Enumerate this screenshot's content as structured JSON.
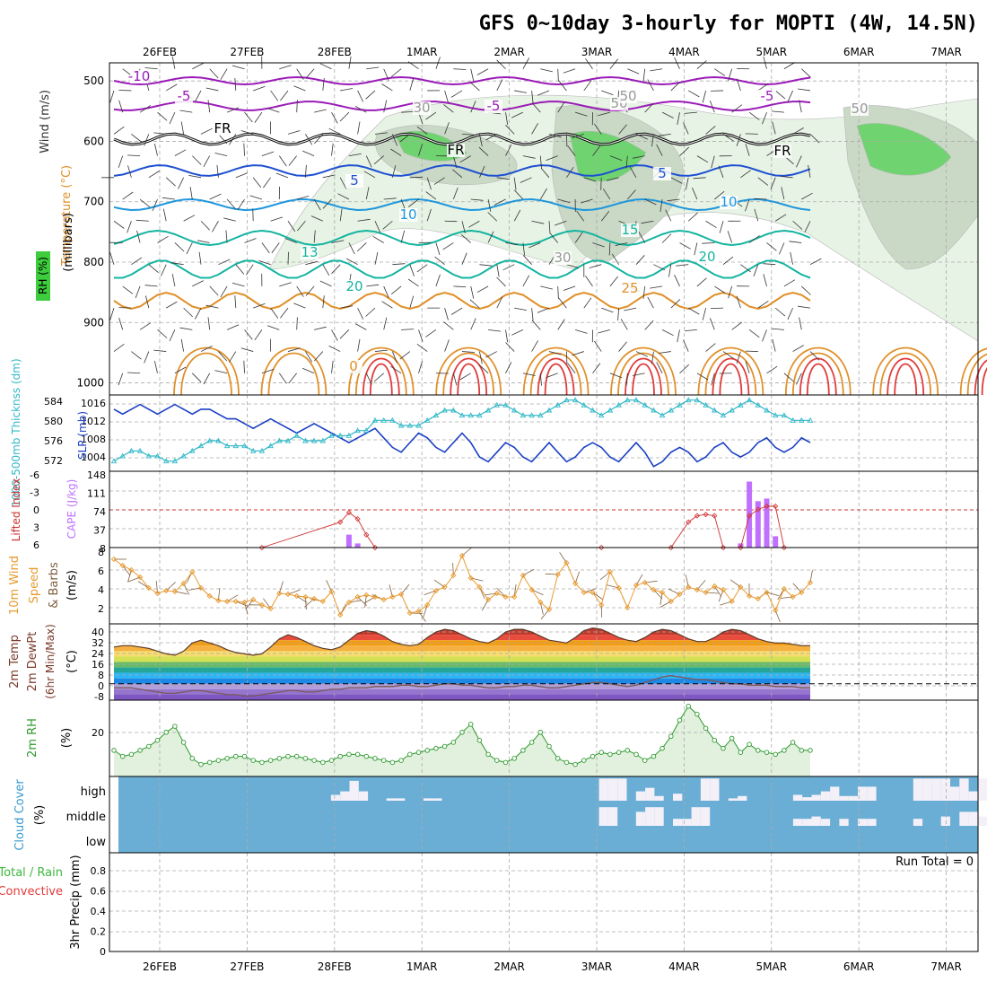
{
  "title": "GFS 0~10day 3-hourly for MOPTI (4W, 14.5N)",
  "dates": [
    "26FEB",
    "27FEB",
    "28FEB",
    "1MAR",
    "2MAR",
    "3MAR",
    "4MAR",
    "5MAR",
    "6MAR",
    "7MAR"
  ],
  "colors": {
    "temp_purple": "#9b1bb8",
    "temp_blue": "#1e50d2",
    "temp_lightblue": "#1e96dc",
    "temp_teal": "#14b4a0",
    "temp_orange": "#e0902a",
    "temp_red": "#e03c3c",
    "rh_green": "#3ccc3c",
    "slp": "#1a3fc4",
    "thickness": "#30b8c8",
    "cape": "#c070ff",
    "lifted": "#d03030",
    "wind10": "#e89a30",
    "rh2m": "#2e9a2e",
    "cloud_bg": "#6aaed6",
    "cloud_fill": "#f4f0f8"
  },
  "panels": {
    "upper": {
      "label_wind": "Wind (m/s)",
      "label_temp": "Temperature (°C)",
      "label_rh": "RH (%)",
      "ylabel": "(millibars)",
      "levels": [
        "500",
        "600",
        "700",
        "800",
        "900",
        "1000"
      ],
      "contour_labels": [
        "-10",
        "-5",
        "-5",
        "-5",
        "FR",
        "FR",
        "FR",
        "5",
        "5",
        "10",
        "10",
        "13",
        "15",
        "20",
        "20",
        "25",
        "30",
        "30",
        "50",
        "30",
        "50",
        "0"
      ]
    },
    "slp": {
      "label_thk": "1000-500mb Thicknss (dm)",
      "label_slp": "SLP (mb)",
      "thk_ticks": [
        "584",
        "580",
        "576",
        "572"
      ],
      "slp_ticks": [
        "1016",
        "1012",
        "1008",
        "1004"
      ]
    },
    "cape": {
      "label_li": "Lifted Index",
      "label_cape": "CAPE (J/kg)",
      "li_ticks": [
        "-6",
        "-3",
        "0",
        "3",
        "6"
      ],
      "cape_ticks": [
        "148",
        "111",
        "74",
        "37",
        "8"
      ]
    },
    "wind10": {
      "label1": "10m Wind",
      "label2": "Speed",
      "label3": "& Barbs",
      "unit": "(m/s)",
      "ticks": [
        "8",
        "6",
        "4",
        "2"
      ]
    },
    "temp2m": {
      "label1": "2m Temp",
      "label2": "2m DewPt",
      "label3": "(6hr Min/Max)",
      "unit": "(°C)",
      "ticks": [
        "40",
        "32",
        "24",
        "16",
        "8",
        "0",
        "-8"
      ]
    },
    "rh2m": {
      "label": "2m RH",
      "unit": "(%)",
      "ticks": [
        "20"
      ]
    },
    "cloud": {
      "label": "Cloud Cover",
      "unit": "(%)",
      "levels": [
        "high",
        "middle",
        "low"
      ]
    },
    "precip": {
      "label1": "Total / Rain",
      "label2": "Convective",
      "ylabel": "3hr Precip (mm)",
      "ticks": [
        "0.8",
        "0.6",
        "0.4",
        "0.2",
        "0"
      ],
      "run_total": "Run Total = 0"
    }
  },
  "chart_data": [
    {
      "type": "line",
      "name": "SLP",
      "ylim": [
        1002,
        1018
      ],
      "values": [
        1015,
        1014,
        1015,
        1016,
        1015,
        1014,
        1015,
        1016,
        1015,
        1014,
        1015,
        1015,
        1014,
        1013,
        1013,
        1012,
        1011,
        1012,
        1013,
        1012,
        1011,
        1010,
        1011,
        1012,
        1011,
        1010,
        1009,
        1008,
        1009,
        1010,
        1011,
        1009,
        1007,
        1006,
        1008,
        1010,
        1009,
        1007,
        1006,
        1008,
        1010,
        1008,
        1005,
        1004,
        1006,
        1008,
        1007,
        1005,
        1004,
        1006,
        1008,
        1006,
        1004,
        1005,
        1007,
        1008,
        1007,
        1005,
        1004,
        1006,
        1008,
        1006,
        1003,
        1004,
        1006,
        1007,
        1006,
        1004,
        1005,
        1007,
        1008,
        1006,
        1005,
        1006,
        1008,
        1009,
        1007,
        1006,
        1007,
        1009,
        1008
      ]
    },
    {
      "type": "line",
      "name": "Thickness",
      "ylim": [
        571,
        586
      ],
      "values": [
        573,
        574,
        575,
        575,
        574,
        574,
        573,
        573,
        574,
        575,
        576,
        577,
        577,
        576,
        576,
        576,
        575,
        575,
        576,
        577,
        577,
        578,
        577,
        577,
        577,
        578,
        578,
        578,
        579,
        579,
        581,
        581,
        581,
        580,
        580,
        580,
        581,
        582,
        583,
        583,
        582,
        582,
        582,
        583,
        584,
        584,
        583,
        582,
        582,
        582,
        583,
        584,
        585,
        585,
        584,
        583,
        582,
        583,
        584,
        585,
        585,
        584,
        583,
        582,
        583,
        584,
        585,
        585,
        584,
        583,
        582,
        583,
        584,
        585,
        584,
        583,
        582,
        582,
        581,
        581,
        581
      ]
    },
    {
      "type": "bar",
      "name": "CAPE",
      "ylim": [
        0,
        148
      ],
      "points": [
        [
          27,
          25
        ],
        [
          28,
          8
        ],
        [
          72,
          8
        ],
        [
          73,
          128
        ],
        [
          74,
          90
        ],
        [
          75,
          95
        ],
        [
          76,
          22
        ]
      ]
    },
    {
      "type": "line",
      "name": "Lifted Index",
      "ylim": [
        6,
        -6
      ],
      "points": [
        [
          17,
          6
        ],
        [
          26,
          2
        ],
        [
          27,
          0.5
        ],
        [
          28,
          1.5
        ],
        [
          29,
          4
        ],
        [
          30,
          6
        ],
        [
          56,
          6
        ],
        [
          64,
          6
        ],
        [
          66,
          2
        ],
        [
          67,
          1
        ],
        [
          68,
          0.8
        ],
        [
          69,
          1
        ],
        [
          70,
          6
        ],
        [
          72,
          6
        ],
        [
          73,
          1
        ],
        [
          74,
          0
        ],
        [
          75,
          -0.5
        ],
        [
          76,
          -0.5
        ],
        [
          77,
          6
        ]
      ]
    },
    {
      "type": "line",
      "name": "10m Wind Speed",
      "ylim": [
        0,
        8.5
      ],
      "values": [
        7.2,
        6.5,
        6.0,
        5.2,
        4.0,
        3.4,
        3.7,
        3.6,
        4.5,
        5.8,
        4.0,
        3.1,
        2.6,
        2.5,
        2.5,
        2.4,
        2.7,
        2.1,
        1.7,
        3.4,
        3.3,
        3.1,
        3.0,
        2.8,
        2.5,
        3.6,
        1.0,
        2.4,
        3.0,
        3.2,
        3.0,
        2.7,
        3.0,
        3.3,
        1.2,
        1.4,
        2.1,
        3.7,
        4.1,
        5.4,
        7.6,
        5.1,
        4.1,
        2.7,
        3.4,
        3.0,
        3.0,
        5.4,
        3.8,
        2.4,
        1.6,
        5.5,
        6.8,
        4.5,
        3.5,
        3.5,
        2.1,
        5.8,
        4.0,
        1.8,
        4.3,
        4.6,
        3.8,
        3.5,
        2.5,
        3.3,
        4.1,
        3.8,
        3.5,
        4.2,
        3.8,
        2.5,
        4.1,
        3.1,
        2.8,
        3.5,
        1.5,
        3.9,
        3.0,
        3.5,
        4.6
      ]
    },
    {
      "type": "area",
      "name": "2m Temp",
      "ylim": [
        -12,
        44
      ],
      "values": [
        27,
        28,
        28,
        27,
        26,
        24,
        22,
        21,
        24,
        30,
        32,
        30,
        28,
        25,
        23,
        22,
        21,
        22,
        27,
        33,
        36,
        34,
        31,
        28,
        26,
        25,
        27,
        32,
        37,
        39,
        38,
        35,
        31,
        29,
        28,
        29,
        34,
        38,
        40,
        39,
        36,
        33,
        31,
        30,
        33,
        38,
        40,
        40,
        38,
        35,
        32,
        31,
        30,
        34,
        39,
        41,
        40,
        37,
        34,
        32,
        31,
        34,
        38,
        40,
        39,
        36,
        33,
        31,
        31,
        34,
        38,
        40,
        39,
        36,
        33,
        31,
        30,
        30,
        29,
        28,
        28
      ]
    },
    {
      "type": "line",
      "name": "2m DewPt",
      "ylim": [
        -12,
        44
      ],
      "values": [
        -3,
        -3,
        -3,
        -4,
        -5,
        -6,
        -7,
        -7,
        -6,
        -5,
        -5,
        -6,
        -7,
        -8,
        -8,
        -9,
        -9,
        -8,
        -7,
        -6,
        -5,
        -5,
        -6,
        -6,
        -5,
        -4,
        -4,
        -3,
        -3,
        -3,
        -2,
        -2,
        -2,
        -1,
        -1,
        -2,
        -2,
        -1,
        0,
        0,
        -1,
        -1,
        -2,
        -3,
        -3,
        -2,
        -2,
        -1,
        -1,
        -2,
        -3,
        -3,
        -2,
        -1,
        0,
        1,
        1,
        0,
        -1,
        -2,
        -1,
        1,
        3,
        5,
        6,
        5,
        4,
        3,
        3,
        2,
        1,
        0,
        0,
        -1,
        -1,
        -1,
        -2,
        -2,
        -2,
        -3,
        -3
      ]
    },
    {
      "type": "area",
      "name": "2m RH",
      "ylim": [
        0,
        38
      ],
      "values": [
        13,
        10,
        11,
        13,
        15,
        18,
        22,
        25,
        17,
        9,
        6,
        7,
        8,
        9,
        10,
        10,
        8,
        7,
        8,
        9,
        10,
        10,
        9,
        8,
        7,
        8,
        10,
        11,
        11,
        10,
        9,
        8,
        7,
        8,
        11,
        12,
        13,
        14,
        15,
        17,
        22,
        26,
        18,
        11,
        8,
        7,
        9,
        13,
        17,
        22,
        15,
        9,
        7,
        6,
        8,
        10,
        12,
        11,
        12,
        13,
        11,
        8,
        10,
        14,
        20,
        28,
        35,
        31,
        24,
        18,
        14,
        19,
        12,
        16,
        13,
        12,
        11,
        13,
        17,
        13,
        13
      ]
    },
    {
      "type": "bar",
      "name": "High cloud",
      "ylim": [
        0,
        100
      ],
      "values": [
        0,
        0,
        0,
        0,
        0,
        0,
        0,
        0,
        0,
        0,
        0,
        0,
        0,
        0,
        0,
        0,
        0,
        0,
        0,
        0,
        0,
        0,
        0,
        0,
        0,
        0,
        0,
        0,
        0,
        0,
        0,
        0,
        0,
        0,
        0,
        0,
        0,
        0,
        0,
        0,
        0,
        0,
        0,
        0,
        0,
        0,
        0,
        0,
        0,
        0,
        0,
        0,
        0,
        0,
        0,
        0,
        0,
        0,
        0,
        0,
        0,
        0,
        0,
        0,
        0,
        0,
        0,
        0,
        0,
        0,
        0,
        0,
        0,
        0,
        0,
        0,
        0,
        0,
        0,
        0,
        0
      ],
      "blocks": [
        [
          23,
          25
        ],
        [
          24,
          40
        ],
        [
          25,
          85
        ],
        [
          26,
          40
        ],
        [
          29,
          10
        ],
        [
          30,
          10
        ],
        [
          33,
          10
        ],
        [
          34,
          10
        ],
        [
          52,
          95
        ],
        [
          53,
          95
        ],
        [
          54,
          95
        ],
        [
          56,
          40
        ],
        [
          57,
          55
        ],
        [
          58,
          20
        ],
        [
          60,
          30
        ],
        [
          63,
          95
        ],
        [
          64,
          95
        ],
        [
          66,
          10
        ],
        [
          67,
          20
        ],
        [
          73,
          25
        ],
        [
          74,
          15
        ],
        [
          75,
          25
        ],
        [
          76,
          40
        ],
        [
          77,
          60
        ],
        [
          78,
          20
        ],
        [
          79,
          20
        ],
        [
          80,
          60
        ],
        [
          81,
          60
        ],
        [
          86,
          95
        ],
        [
          87,
          95
        ],
        [
          88,
          95
        ],
        [
          89,
          95
        ],
        [
          90,
          60
        ],
        [
          91,
          95
        ],
        [
          92,
          40
        ],
        [
          93,
          95
        ]
      ]
    },
    {
      "type": "bar",
      "name": "Middle cloud",
      "ylim": [
        0,
        100
      ],
      "values": [
        0
      ],
      "blocks": [
        [
          52,
          80
        ],
        [
          53,
          80
        ],
        [
          56,
          60
        ],
        [
          57,
          80
        ],
        [
          58,
          80
        ],
        [
          60,
          30
        ],
        [
          61,
          30
        ],
        [
          62,
          80
        ],
        [
          63,
          80
        ],
        [
          73,
          30
        ],
        [
          74,
          30
        ],
        [
          75,
          40
        ],
        [
          76,
          30
        ],
        [
          78,
          30
        ],
        [
          80,
          30
        ],
        [
          81,
          30
        ],
        [
          86,
          30
        ],
        [
          89,
          40
        ],
        [
          91,
          60
        ],
        [
          92,
          60
        ],
        [
          93,
          40
        ]
      ]
    },
    {
      "type": "bar",
      "name": "3hr Precip",
      "ylim": [
        0,
        1
      ],
      "values": [
        0
      ]
    }
  ]
}
